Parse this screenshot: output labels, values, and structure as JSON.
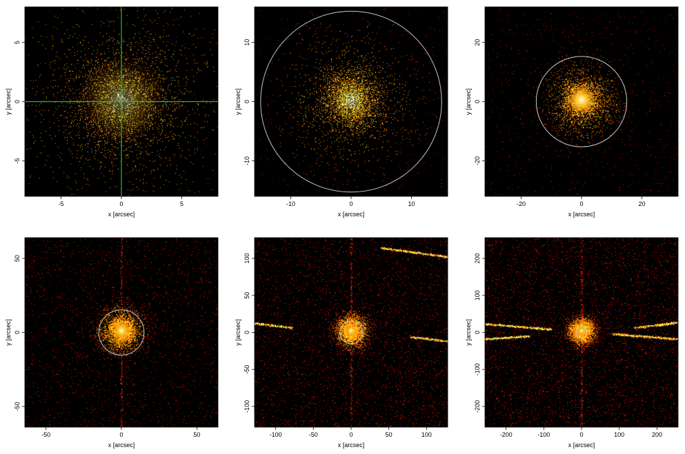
{
  "panels": [
    {
      "xlabel": "x [arcsec]",
      "ylabel": "y [arcsec]",
      "xrange": [
        -8,
        8
      ],
      "yrange": [
        -8,
        8
      ],
      "xticks": [
        -5,
        0,
        5
      ],
      "yticks": [
        -5,
        0,
        5
      ],
      "circle_radius": null,
      "crosshair": true,
      "streaks": [],
      "source_sigma": 2.2,
      "core_sigma": 0.8,
      "background": 0.0
    },
    {
      "xlabel": "x [arcsec]",
      "ylabel": "y [arcsec]",
      "xrange": [
        -16,
        16
      ],
      "yrange": [
        -16,
        16
      ],
      "xticks": [
        -10,
        0,
        10
      ],
      "yticks": [
        -10,
        0,
        10
      ],
      "circle_radius": 15,
      "crosshair": false,
      "streaks": [],
      "source_sigma": 2.5,
      "core_sigma": 0.9,
      "background": 0.004
    },
    {
      "xlabel": "x [arcsec]",
      "ylabel": "y [arcsec]",
      "xrange": [
        -32,
        32
      ],
      "yrange": [
        -32,
        32
      ],
      "xticks": [
        -20,
        0,
        20
      ],
      "yticks": [
        -20,
        0,
        20
      ],
      "circle_radius": 15,
      "crosshair": false,
      "streaks": [],
      "source_sigma": 2.8,
      "core_sigma": 1.0,
      "background": 0.01
    },
    {
      "xlabel": "x [arcsec]",
      "ylabel": "y [arcsec]",
      "xrange": [
        -64,
        64
      ],
      "yrange": [
        -64,
        64
      ],
      "xticks": [
        -50,
        0,
        50
      ],
      "yticks": [
        -50,
        0,
        50
      ],
      "circle_radius": 15,
      "crosshair": false,
      "streaks": [],
      "source_sigma": 3.5,
      "core_sigma": 1.2,
      "background": 0.03
    },
    {
      "xlabel": "x [arcsec]",
      "ylabel": "y [arcsec]",
      "xrange": [
        -128,
        128
      ],
      "yrange": [
        -128,
        128
      ],
      "xticks": [
        -100,
        -50,
        0,
        50,
        100
      ],
      "yticks": [
        -100,
        -50,
        0,
        50,
        100
      ],
      "circle_radius": 15,
      "crosshair": false,
      "streaks": [
        [
          -128,
          10,
          -78,
          4
        ],
        [
          78,
          -8,
          128,
          -14
        ],
        [
          40,
          110,
          128,
          98
        ]
      ],
      "source_sigma": 5,
      "core_sigma": 1.6,
      "background": 0.05
    },
    {
      "xlabel": "x [arcsec]",
      "ylabel": "y [arcsec]",
      "xrange": [
        -256,
        256
      ],
      "yrange": [
        -256,
        256
      ],
      "xticks": [
        -200,
        -100,
        0,
        100,
        200
      ],
      "yticks": [
        -200,
        -100,
        0,
        100,
        200
      ],
      "circle_radius": 15,
      "crosshair": false,
      "streaks": [
        [
          -256,
          18,
          -80,
          4
        ],
        [
          -256,
          -22,
          -140,
          -14
        ],
        [
          80,
          -8,
          256,
          -22
        ],
        [
          140,
          8,
          256,
          22
        ]
      ],
      "source_sigma": 8,
      "core_sigma": 2.5,
      "background": 0.06
    }
  ]
}
